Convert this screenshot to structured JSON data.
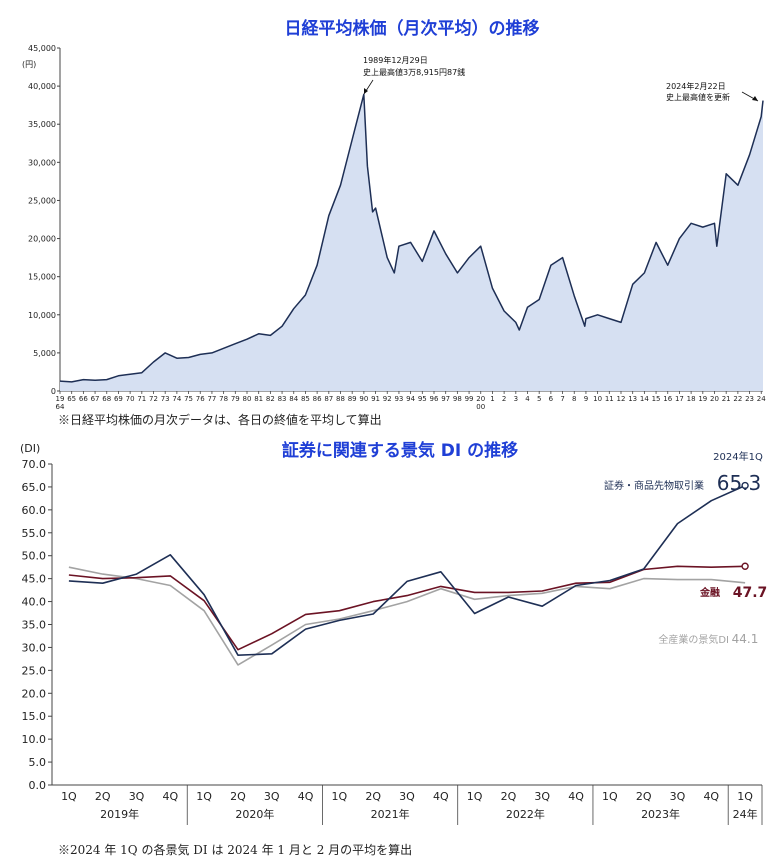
{
  "chart_data": [
    {
      "type": "area",
      "title": "日経平均株価（月次平均）の推移",
      "unit": "(円)",
      "ylim": [
        0,
        45000
      ],
      "yticks": [
        "0",
        "5,000",
        "10,000",
        "15,000",
        "20,000",
        "25,000",
        "30,000",
        "35,000",
        "40,000",
        "45,000"
      ],
      "xtick_labels": [
        "19\n64",
        "65",
        "66",
        "67",
        "68",
        "69",
        "70",
        "71",
        "72",
        "73",
        "74",
        "75",
        "76",
        "77",
        "78",
        "79",
        "80",
        "81",
        "82",
        "83",
        "84",
        "85",
        "86",
        "87",
        "88",
        "89",
        "90",
        "91",
        "92",
        "93",
        "94",
        "95",
        "96",
        "97",
        "98",
        "99",
        "20\n00",
        "1",
        "2",
        "3",
        "4",
        "5",
        "6",
        "7",
        "8",
        "9",
        "10",
        "11",
        "12",
        "13",
        "14",
        "15",
        "16",
        "17",
        "18",
        "19",
        "20",
        "21",
        "22",
        "23",
        "24"
      ],
      "x": [
        1964,
        1965,
        1966,
        1967,
        1968,
        1969,
        1970,
        1971,
        1972,
        1973,
        1974,
        1975,
        1976,
        1977,
        1978,
        1979,
        1980,
        1981,
        1982,
        1983,
        1984,
        1985,
        1986,
        1987,
        1988,
        1989,
        1989.99,
        1990.3,
        1990.75,
        1991,
        1992,
        1992.6,
        1993,
        1994,
        1995,
        1996,
        1997,
        1998,
        1999,
        2000,
        2001,
        2002,
        2003,
        2003.3,
        2004,
        2005,
        2006,
        2007,
        2008,
        2008.9,
        2009,
        2010,
        2011,
        2012,
        2013,
        2014,
        2015,
        2016,
        2017,
        2018,
        2019,
        2020,
        2020.2,
        2021,
        2022,
        2023,
        2024.0,
        2024.15
      ],
      "values": [
        1300,
        1200,
        1500,
        1400,
        1500,
        2000,
        2200,
        2400,
        3800,
        5000,
        4300,
        4400,
        4800,
        5000,
        5600,
        6200,
        6800,
        7500,
        7300,
        8500,
        10800,
        12600,
        16500,
        23000,
        27000,
        33000,
        38915,
        29500,
        23500,
        24000,
        17500,
        15500,
        19000,
        19500,
        17000,
        21000,
        18000,
        15500,
        17500,
        19000,
        13500,
        10500,
        9000,
        8000,
        11000,
        12000,
        16500,
        17500,
        12500,
        8500,
        9500,
        10000,
        9500,
        9000,
        14000,
        15500,
        19500,
        16500,
        20000,
        22000,
        21500,
        22000,
        19000,
        28500,
        27000,
        31000,
        36000,
        38100
      ],
      "annotations": [
        {
          "line1": "1989年12月29日",
          "line2": "史上最高値3万8,915円87銭"
        },
        {
          "line1": "2024年2月22日",
          "line2": "史上最高値を更新"
        }
      ],
      "note": "※日経平均株価の月次データは、各日の終値を平均して算出",
      "colors": {
        "line": "#1e2f55",
        "fill": "#d6e0f2"
      }
    },
    {
      "type": "line",
      "title": "証券に関連する景気 DI の推移",
      "unit": "(DI)",
      "ylim": [
        0,
        70
      ],
      "yticks": [
        "0.0",
        "5.0",
        "10.0",
        "15.0",
        "20.0",
        "25.0",
        "30.0",
        "35.0",
        "40.0",
        "45.0",
        "50.0",
        "55.0",
        "60.0",
        "65.0",
        "70.0"
      ],
      "categories": [
        "1Q",
        "2Q",
        "3Q",
        "4Q",
        "1Q",
        "2Q",
        "3Q",
        "4Q",
        "1Q",
        "2Q",
        "3Q",
        "4Q",
        "1Q",
        "2Q",
        "3Q",
        "4Q",
        "1Q",
        "2Q",
        "3Q",
        "4Q",
        "1Q"
      ],
      "years": [
        "2019年",
        "2020年",
        "2021年",
        "2022年",
        "2023年",
        "24年"
      ],
      "series": [
        {
          "name": "証券・商品先物取引業",
          "color": "#1e2f55",
          "values": [
            44.5,
            44.0,
            46.0,
            50.2,
            41.5,
            28.3,
            28.6,
            34.0,
            35.9,
            37.3,
            44.4,
            46.5,
            37.4,
            41.0,
            39.0,
            43.5,
            44.6,
            47.1,
            57.0,
            62.0,
            65.3
          ]
        },
        {
          "name": "金融",
          "color": "#6b1324",
          "values": [
            45.8,
            45.0,
            45.2,
            45.6,
            40.2,
            29.5,
            33.0,
            37.2,
            38.0,
            40.0,
            41.3,
            43.3,
            42.0,
            42.0,
            42.3,
            44.0,
            44.2,
            47.0,
            47.7,
            47.5,
            47.7
          ]
        },
        {
          "name": "全産業の景気DI",
          "color": "#a3a3a3",
          "values": [
            47.5,
            46.0,
            45.0,
            43.5,
            38.0,
            26.2,
            30.5,
            35.0,
            36.2,
            38.0,
            40.0,
            42.8,
            40.5,
            41.3,
            41.8,
            43.3,
            42.8,
            45.0,
            44.8,
            44.8,
            44.1
          ]
        }
      ],
      "end_labels": {
        "period": "2024年1Q",
        "s1_name": "証券・商品先物取引業",
        "s1_value": "65.3",
        "s2_name": "金融",
        "s2_value": "47.7",
        "s3_name": "全産業の景気DI",
        "s3_value": "44.1"
      },
      "note": "※2024 年 1Q の各景気 DI は 2024 年 1 月と 2 月の平均を算出"
    }
  ]
}
